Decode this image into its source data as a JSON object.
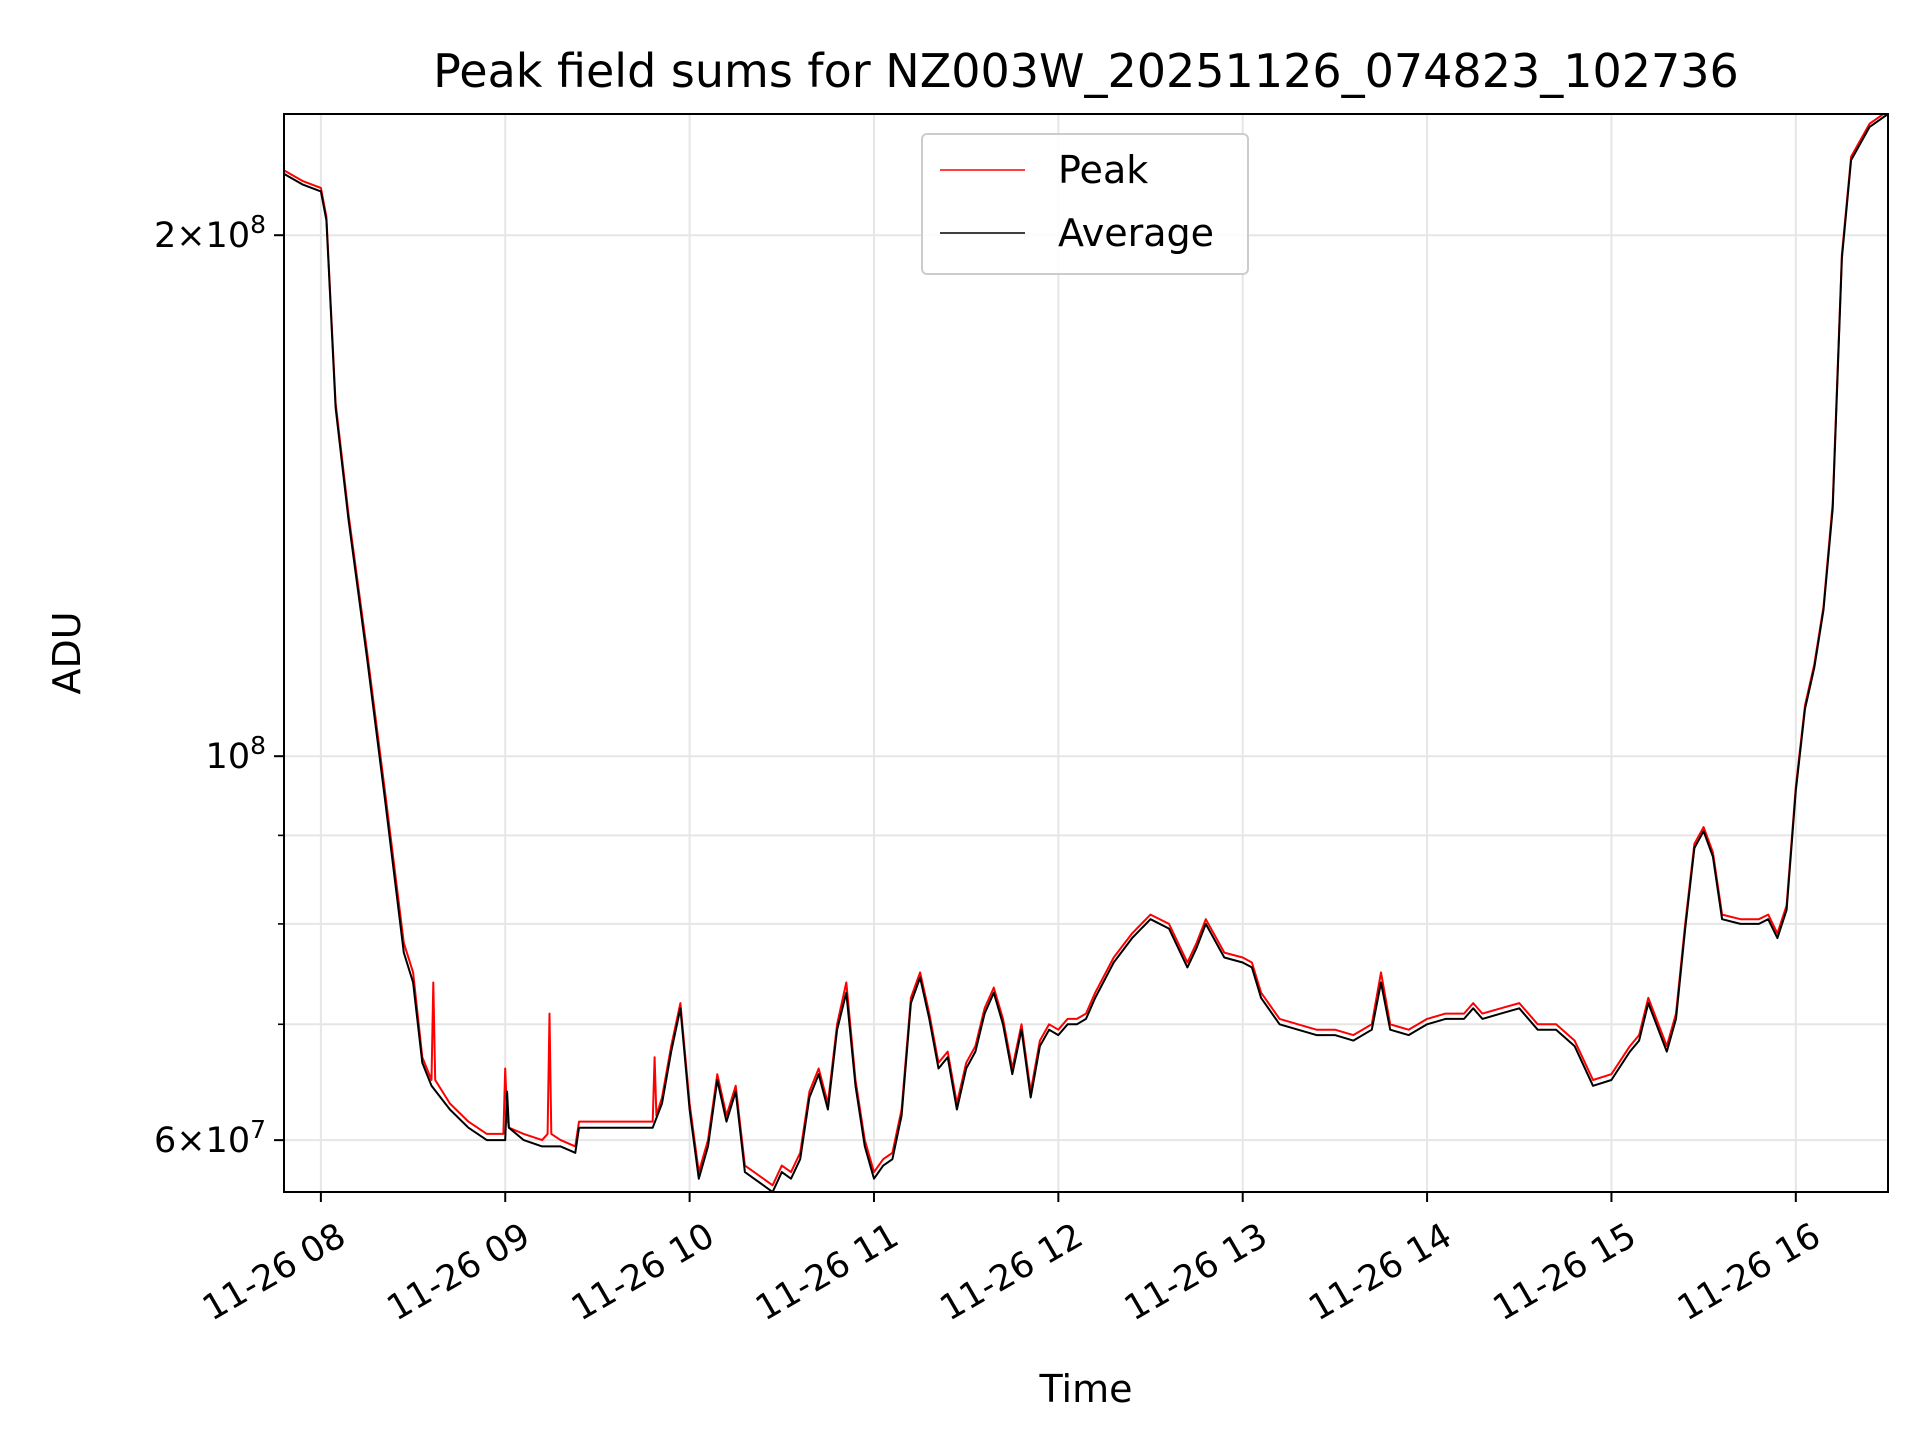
{
  "chart_data": {
    "type": "line",
    "title": "Peak field sums for NZ003W_20251126_074823_102736",
    "xlabel": "Time",
    "ylabel": "ADU",
    "yscale": "log",
    "ylim": [
      56000000,
      235000000
    ],
    "xlim_hours": [
      7.8,
      16.5
    ],
    "grid": true,
    "legend_position": "top-center",
    "x_ticks": [
      {
        "h": 8,
        "label": "11-26 08"
      },
      {
        "h": 9,
        "label": "11-26 09"
      },
      {
        "h": 10,
        "label": "11-26 10"
      },
      {
        "h": 11,
        "label": "11-26 11"
      },
      {
        "h": 12,
        "label": "11-26 12"
      },
      {
        "h": 13,
        "label": "11-26 13"
      },
      {
        "h": 14,
        "label": "11-26 14"
      },
      {
        "h": 15,
        "label": "11-26 15"
      },
      {
        "h": 16,
        "label": "11-26 16"
      }
    ],
    "y_ticks_major": [
      {
        "v": 60000000,
        "base": "6×10",
        "exp": "7"
      },
      {
        "v": 100000000,
        "base": "10",
        "exp": "8"
      },
      {
        "v": 200000000,
        "base": "2×10",
        "exp": "8"
      }
    ],
    "y_ticks_minor": [
      70000000,
      80000000,
      90000000
    ],
    "series": [
      {
        "name": "Peak",
        "color": "#ff0000",
        "x_hours": [
          7.8,
          7.9,
          8.0,
          8.03,
          8.08,
          8.15,
          8.25,
          8.35,
          8.45,
          8.5,
          8.55,
          8.6,
          8.61,
          8.62,
          8.7,
          8.8,
          8.9,
          8.99,
          9.0,
          9.01,
          9.02,
          9.1,
          9.2,
          9.23,
          9.24,
          9.25,
          9.3,
          9.38,
          9.4,
          9.5,
          9.6,
          9.7,
          9.8,
          9.81,
          9.82,
          9.85,
          9.9,
          9.95,
          10.0,
          10.05,
          10.1,
          10.15,
          10.2,
          10.25,
          10.3,
          10.35,
          10.4,
          10.45,
          10.5,
          10.55,
          10.6,
          10.65,
          10.7,
          10.75,
          10.8,
          10.85,
          10.9,
          10.95,
          11.0,
          11.05,
          11.1,
          11.15,
          11.2,
          11.25,
          11.3,
          11.35,
          11.4,
          11.45,
          11.5,
          11.55,
          11.6,
          11.65,
          11.7,
          11.75,
          11.8,
          11.85,
          11.9,
          11.95,
          12.0,
          12.05,
          12.1,
          12.15,
          12.2,
          12.3,
          12.4,
          12.5,
          12.6,
          12.7,
          12.75,
          12.8,
          12.9,
          13.0,
          13.05,
          13.1,
          13.2,
          13.3,
          13.4,
          13.5,
          13.6,
          13.7,
          13.75,
          13.8,
          13.9,
          14.0,
          14.1,
          14.2,
          14.25,
          14.3,
          14.4,
          14.5,
          14.6,
          14.7,
          14.8,
          14.9,
          15.0,
          15.1,
          15.15,
          15.2,
          15.3,
          15.35,
          15.4,
          15.45,
          15.5,
          15.55,
          15.6,
          15.7,
          15.8,
          15.85,
          15.9,
          15.95,
          16.0,
          16.05,
          16.1,
          16.15,
          16.2,
          16.25,
          16.3,
          16.4,
          16.5
        ],
        "values": [
          218000000,
          215000000,
          213000000,
          205000000,
          160000000,
          138000000,
          115000000,
          95000000,
          78000000,
          75000000,
          67000000,
          65000000,
          74000000,
          65000000,
          63000000,
          61500000,
          60500000,
          60500000,
          66000000,
          62000000,
          61000000,
          60500000,
          60000000,
          60500000,
          71000000,
          60500000,
          60000000,
          59500000,
          61500000,
          61500000,
          61500000,
          61500000,
          61500000,
          67000000,
          62000000,
          63500000,
          68000000,
          72000000,
          63000000,
          57500000,
          60000000,
          65500000,
          62000000,
          64500000,
          58000000,
          57500000,
          57000000,
          56500000,
          58000000,
          57500000,
          59000000,
          64000000,
          66000000,
          63000000,
          70000000,
          74000000,
          65000000,
          60000000,
          57500000,
          58500000,
          59000000,
          62500000,
          72500000,
          75000000,
          71000000,
          66500000,
          67500000,
          63000000,
          66500000,
          68000000,
          71500000,
          73500000,
          70500000,
          66000000,
          70000000,
          64000000,
          68500000,
          70000000,
          69500000,
          70500000,
          70500000,
          71000000,
          73000000,
          76500000,
          79000000,
          81000000,
          80000000,
          76000000,
          78000000,
          80500000,
          77000000,
          76500000,
          76000000,
          73000000,
          70500000,
          70000000,
          69500000,
          69500000,
          69000000,
          70000000,
          75000000,
          70000000,
          69500000,
          70500000,
          71000000,
          71000000,
          72000000,
          71000000,
          71500000,
          72000000,
          70000000,
          70000000,
          68500000,
          65000000,
          65500000,
          68000000,
          69000000,
          72500000,
          68000000,
          71000000,
          80000000,
          89000000,
          91000000,
          88000000,
          81000000,
          80500000,
          80500000,
          81000000,
          79000000,
          82000000,
          96000000,
          107000000,
          113000000,
          122000000,
          140000000,
          195000000,
          222000000,
          232000000,
          236000000
        ]
      },
      {
        "name": "Average",
        "color": "#000000",
        "x_hours": [
          7.8,
          7.9,
          8.0,
          8.03,
          8.08,
          8.15,
          8.25,
          8.35,
          8.45,
          8.5,
          8.55,
          8.6,
          8.7,
          8.8,
          8.9,
          9.0,
          9.01,
          9.02,
          9.1,
          9.2,
          9.3,
          9.38,
          9.4,
          9.5,
          9.6,
          9.7,
          9.8,
          9.85,
          9.9,
          9.95,
          10.0,
          10.05,
          10.1,
          10.15,
          10.2,
          10.25,
          10.3,
          10.35,
          10.4,
          10.45,
          10.5,
          10.55,
          10.6,
          10.65,
          10.7,
          10.75,
          10.8,
          10.85,
          10.9,
          10.95,
          11.0,
          11.05,
          11.1,
          11.15,
          11.2,
          11.25,
          11.3,
          11.35,
          11.4,
          11.45,
          11.5,
          11.55,
          11.6,
          11.65,
          11.7,
          11.75,
          11.8,
          11.85,
          11.9,
          11.95,
          12.0,
          12.05,
          12.1,
          12.15,
          12.2,
          12.3,
          12.4,
          12.5,
          12.6,
          12.7,
          12.75,
          12.8,
          12.9,
          13.0,
          13.05,
          13.1,
          13.2,
          13.3,
          13.4,
          13.5,
          13.6,
          13.7,
          13.75,
          13.8,
          13.9,
          14.0,
          14.1,
          14.2,
          14.25,
          14.3,
          14.4,
          14.5,
          14.6,
          14.7,
          14.8,
          14.9,
          15.0,
          15.1,
          15.15,
          15.2,
          15.3,
          15.35,
          15.4,
          15.45,
          15.5,
          15.55,
          15.6,
          15.7,
          15.8,
          15.85,
          15.9,
          15.95,
          16.0,
          16.05,
          16.1,
          16.15,
          16.2,
          16.25,
          16.3,
          16.4,
          16.5
        ],
        "values": [
          217000000,
          214000000,
          212000000,
          204000000,
          159000000,
          137000000,
          114000000,
          94000000,
          77000000,
          74000000,
          66500000,
          64500000,
          62500000,
          61000000,
          60000000,
          60000000,
          64000000,
          61000000,
          60000000,
          59500000,
          59500000,
          59000000,
          61000000,
          61000000,
          61000000,
          61000000,
          61000000,
          63000000,
          67500000,
          71500000,
          62500000,
          57000000,
          59500000,
          65000000,
          61500000,
          64000000,
          57500000,
          57000000,
          56500000,
          56000000,
          57500000,
          57000000,
          58500000,
          63500000,
          65500000,
          62500000,
          69500000,
          73000000,
          64500000,
          59500000,
          57000000,
          58000000,
          58500000,
          62000000,
          72000000,
          74500000,
          70500000,
          66000000,
          67000000,
          62500000,
          66000000,
          67500000,
          71000000,
          73000000,
          70000000,
          65500000,
          69500000,
          63500000,
          68000000,
          69500000,
          69000000,
          70000000,
          70000000,
          70500000,
          72500000,
          76000000,
          78500000,
          80500000,
          79500000,
          75500000,
          77500000,
          80000000,
          76500000,
          76000000,
          75500000,
          72500000,
          70000000,
          69500000,
          69000000,
          69000000,
          68500000,
          69500000,
          74000000,
          69500000,
          69000000,
          70000000,
          70500000,
          70500000,
          71500000,
          70500000,
          71000000,
          71500000,
          69500000,
          69500000,
          68000000,
          64500000,
          65000000,
          67500000,
          68500000,
          72000000,
          67500000,
          70500000,
          79500000,
          88500000,
          90500000,
          87500000,
          80500000,
          80000000,
          80000000,
          80500000,
          78500000,
          81500000,
          95500000,
          106500000,
          112500000,
          121500000,
          139000000,
          194000000,
          221000000,
          231000000,
          235000000
        ]
      }
    ]
  }
}
